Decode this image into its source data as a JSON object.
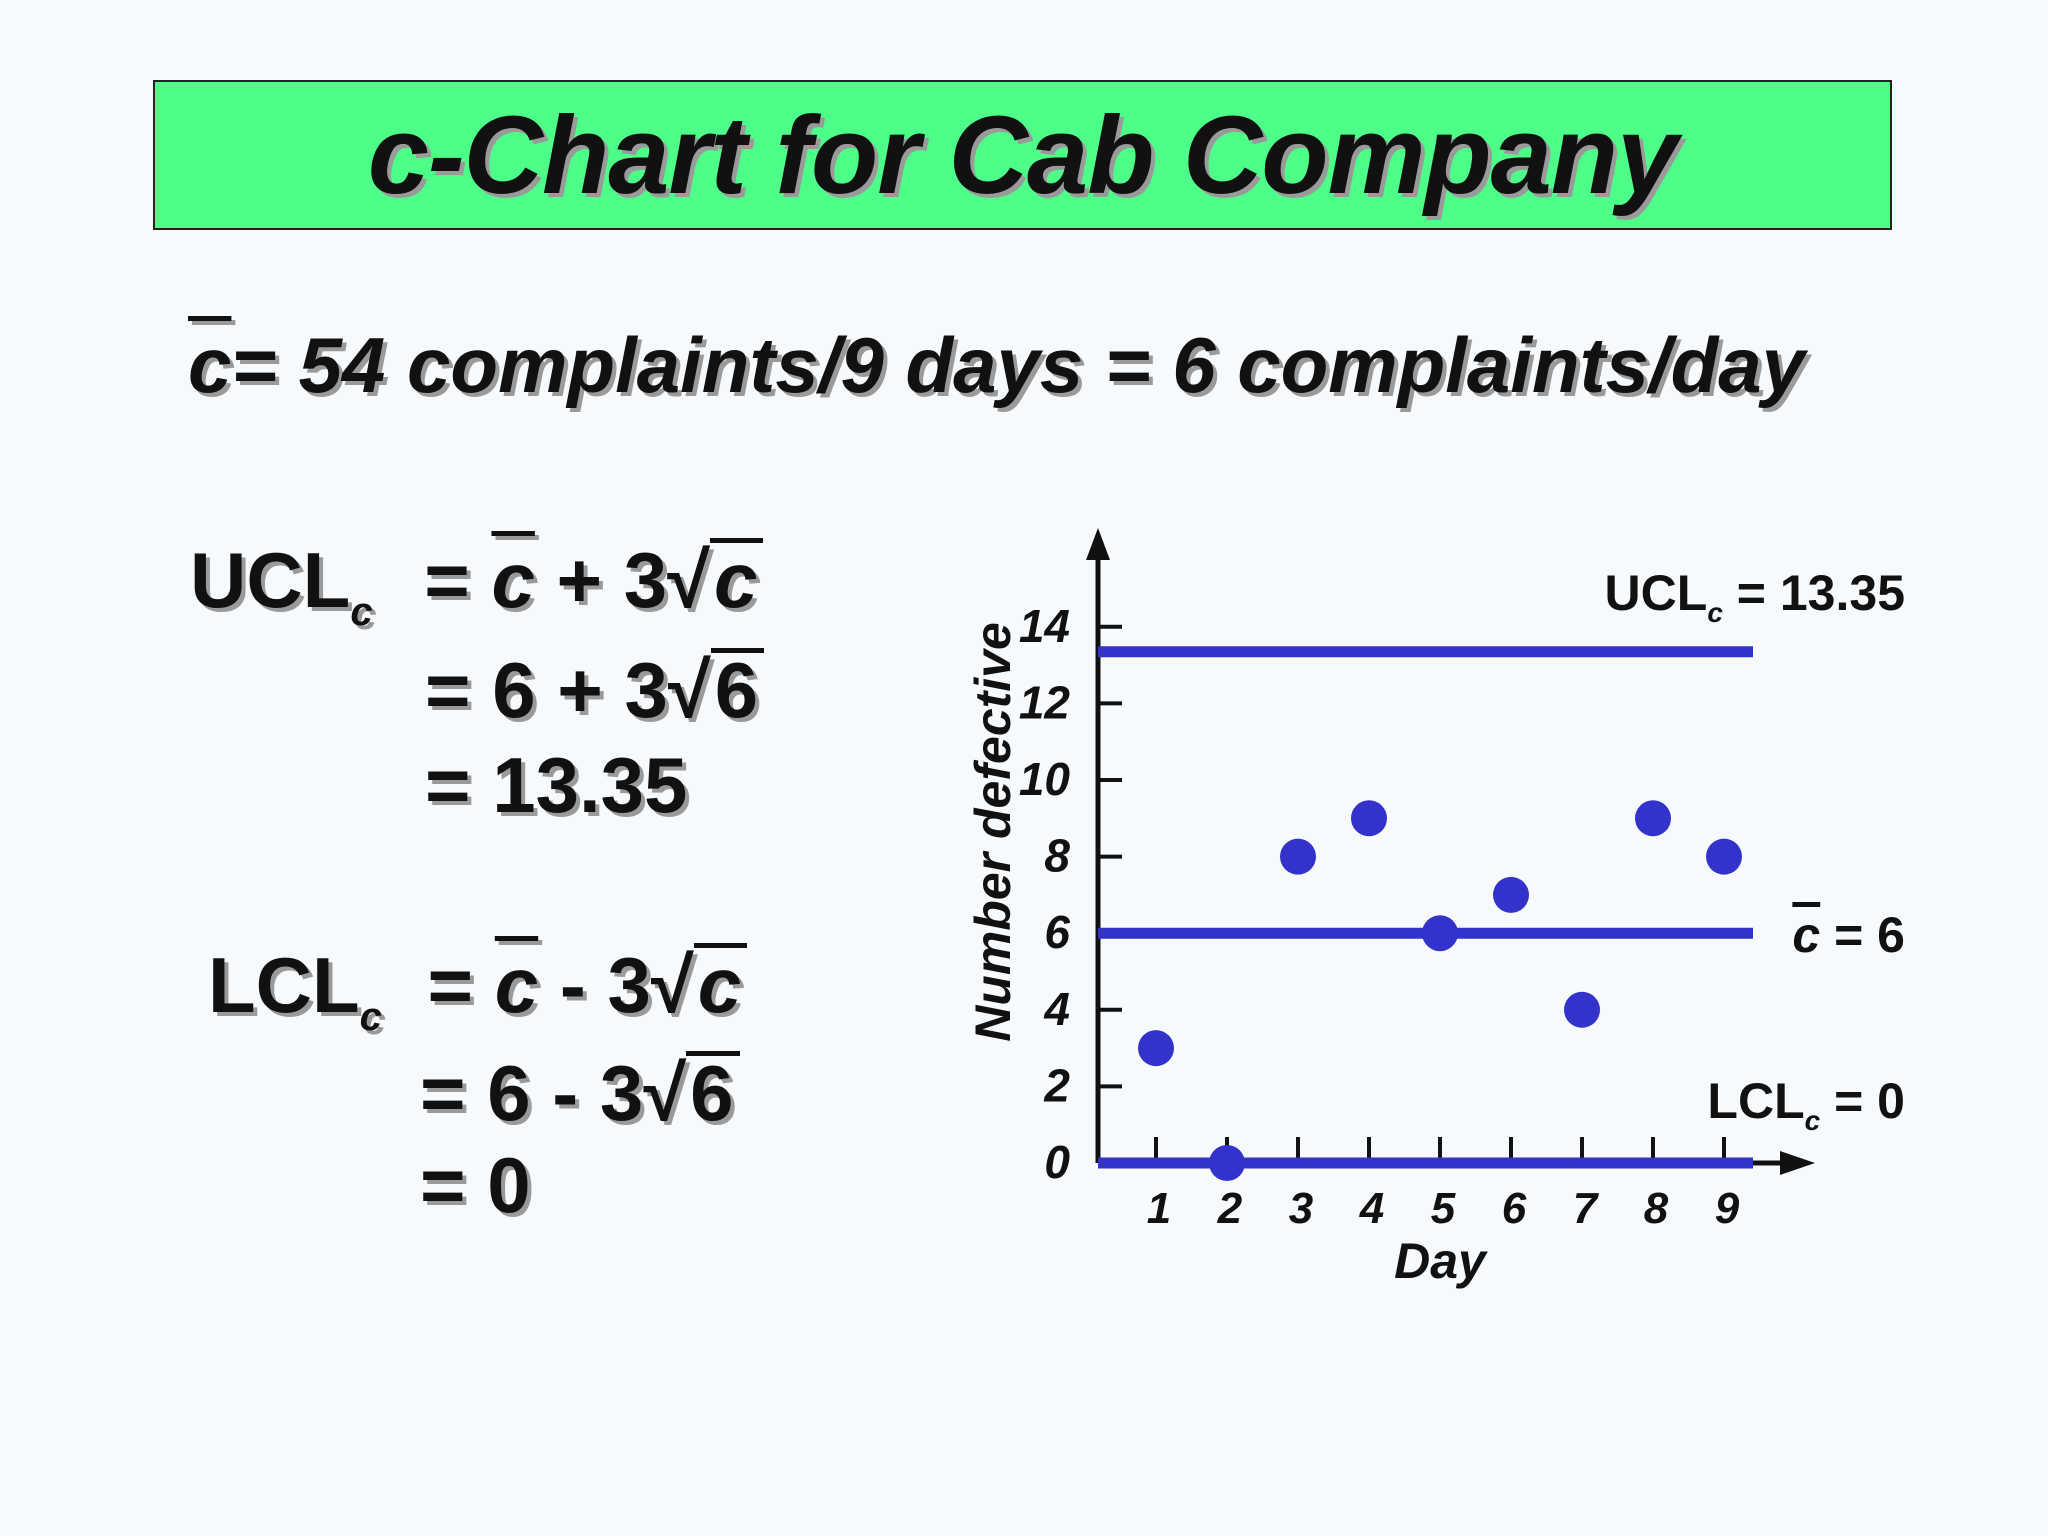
{
  "title": "c-Chart for Cab Company",
  "summary": {
    "cbar_symbol": "c",
    "text": "= 54 complaints/9 days = 6 complaints/day"
  },
  "ucl": {
    "label": "UCL",
    "sub": "c",
    "line1_prefix": "= ",
    "line1_c": "c",
    "line1_mid": " + 3",
    "line1_root": "c",
    "line2_prefix": "= 6 + 3",
    "line2_root": "6",
    "line3": "= 13.35"
  },
  "lcl": {
    "label": "LCL",
    "sub": "c",
    "line1_prefix": "= ",
    "line1_c": "c",
    "line1_mid": " - 3",
    "line1_root": "c",
    "line2_prefix": "= 6 - 3",
    "line2_root": "6",
    "line3": "= 0"
  },
  "chart_data": {
    "type": "scatter",
    "x": [
      1,
      2,
      3,
      4,
      5,
      6,
      7,
      8,
      9
    ],
    "values": [
      3,
      0,
      8,
      9,
      6,
      7,
      4,
      9,
      8
    ],
    "xlabel": "Day",
    "ylabel": "Number defective",
    "ylim": [
      0,
      14
    ],
    "yticks": [
      0,
      2,
      4,
      6,
      8,
      10,
      12,
      14
    ],
    "xticks": [
      1,
      2,
      3,
      4,
      5,
      6,
      7,
      8,
      9
    ],
    "control_lines": [
      {
        "name": "UCL",
        "value": 13.35,
        "label_main": "UCL",
        "label_sub": "c",
        "label_value": " = 13.35"
      },
      {
        "name": "center",
        "value": 6,
        "label_main": "c",
        "label_value": " =  6"
      },
      {
        "name": "LCL",
        "value": 0,
        "label_main": "LCL",
        "label_sub": "c",
        "label_value": " = 0"
      }
    ],
    "colors": {
      "points": "#3333cc",
      "lines": "#3333cc",
      "axes": "#111111"
    }
  }
}
